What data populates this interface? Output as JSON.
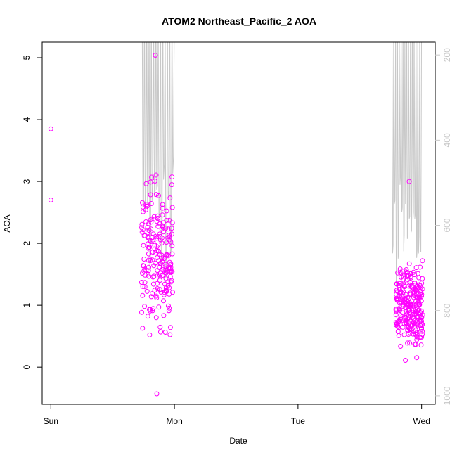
{
  "chart_data": {
    "type": "scatter",
    "title": "ATOM2 Northeast_Pacific_2 AOA",
    "xlabel": "Date",
    "ylabel": "AOA",
    "x_ticks": [
      {
        "day": 0,
        "label": "Sun"
      },
      {
        "day": 1,
        "label": "Mon"
      },
      {
        "day": 2,
        "label": "Tue"
      },
      {
        "day": 3,
        "label": "Wed"
      }
    ],
    "y_ticks": [
      0,
      1,
      2,
      3,
      4,
      5
    ],
    "ylim": [
      -0.6,
      5.25
    ],
    "xlim": [
      -0.07,
      3.11
    ],
    "secondary_axis": {
      "ticks": [
        200,
        400,
        600,
        800,
        1000
      ],
      "range": [
        170,
        1020
      ],
      "color": "#c8c8c8"
    },
    "point_color": "#ff00ff",
    "line_color": "#c8c8c8",
    "point_groups": [
      {
        "x_center": 0.0,
        "x_spread": 0.0,
        "n": 2,
        "y_min": 2.7,
        "y_max": 3.85,
        "fixed": [
          [
            0.0,
            3.85
          ],
          [
            0.0,
            2.7
          ]
        ]
      },
      {
        "x_center": 0.86,
        "x_spread": 0.14,
        "n": 210,
        "y_min": -0.43,
        "y_max": 5.04,
        "mode": 1.8
      },
      {
        "x_center": 2.9,
        "x_spread": 0.12,
        "n": 260,
        "y_min": 0.11,
        "y_max": 3.0,
        "mode": 1.0
      }
    ],
    "profile_lines": [
      {
        "x_start": 0.74,
        "x_end": 1.0,
        "top": 5.25,
        "bottom_min": 1.2,
        "bottom_max": 3.3,
        "count": 14
      },
      {
        "x_start": 2.76,
        "x_end": 3.0,
        "top": 5.25,
        "bottom_min": 1.0,
        "bottom_max": 3.0,
        "count": 16
      }
    ]
  }
}
